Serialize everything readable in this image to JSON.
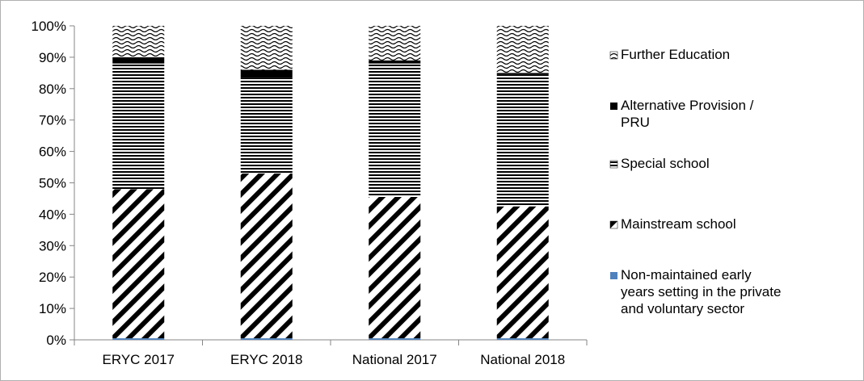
{
  "chart_data": {
    "type": "bar",
    "stacked": true,
    "percent": true,
    "categories": [
      "ERYC 2017",
      "ERYC 2018",
      "National 2017",
      "National 2018"
    ],
    "ylim": [
      0,
      100
    ],
    "yticks": [
      "0%",
      "10%",
      "20%",
      "30%",
      "40%",
      "50%",
      "60%",
      "70%",
      "80%",
      "90%",
      "100%"
    ],
    "grid": false,
    "legend_position": "right",
    "title": "",
    "xlabel": "",
    "ylabel": "",
    "series": [
      {
        "name": "Non-maintained early years setting in the private and voluntary sector",
        "legend_lines": [
          "Non-maintained early",
          "years setting in the private",
          "and voluntary sector"
        ],
        "pattern": "solid",
        "color": "#4f81bd",
        "values": [
          0.5,
          0.5,
          0.5,
          0.5
        ]
      },
      {
        "name": "Mainstream school",
        "legend_lines": [
          "Mainstream school"
        ],
        "pattern": "diagonal",
        "color": "#000000",
        "values": [
          47.5,
          52.5,
          45,
          42
        ]
      },
      {
        "name": "Special school",
        "legend_lines": [
          "Special school"
        ],
        "pattern": "horizontal",
        "color": "#000000",
        "values": [
          40,
          30.5,
          42.5,
          42
        ]
      },
      {
        "name": "Alternative Provision / PRU",
        "legend_lines": [
          "Alternative Provision /",
          "PRU"
        ],
        "pattern": "solid",
        "color": "#000000",
        "values": [
          2,
          2.5,
          1,
          0.5
        ]
      },
      {
        "name": "Further Education",
        "legend_lines": [
          "Further Education"
        ],
        "pattern": "wave",
        "color": "#000000",
        "values": [
          10,
          14,
          11,
          15
        ]
      }
    ]
  }
}
